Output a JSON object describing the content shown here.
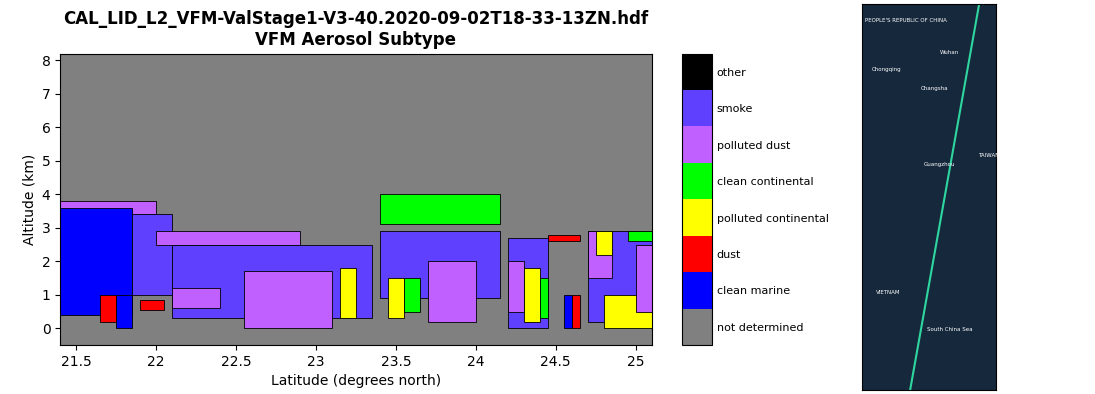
{
  "chart_data": {
    "type": "heatmap",
    "title": "CAL_LID_L2_VFM-ValStage1-V3-40.2020-09-02T18-33-13ZN.hdf\nVFM Aerosol Subtype",
    "x_label": "Latitude (degrees north)",
    "y_label": "Altitude (km)",
    "xlim": [
      21.4,
      25.1
    ],
    "xticks": [
      21.5,
      22,
      22.5,
      23,
      23.5,
      24,
      24.5,
      25
    ],
    "ylim": [
      -0.5,
      8.2
    ],
    "yticks": [
      0,
      1,
      2,
      3,
      4,
      5,
      6,
      7,
      8
    ],
    "colorbar": {
      "categories": [
        "not determined",
        "clean marine",
        "dust",
        "polluted continental",
        "clean continental",
        "polluted dust",
        "smoke",
        "other"
      ],
      "colors": [
        "#808080",
        "#0000ff",
        "#ff0000",
        "#ffff00",
        "#00ff00",
        "#c060ff",
        "#6040ff",
        "#000000"
      ]
    },
    "regions": [
      {
        "lat": [
          21.4,
          22.0
        ],
        "alt": [
          3.4,
          3.8
        ],
        "class": "polluted dust"
      },
      {
        "lat": [
          21.4,
          21.85
        ],
        "alt": [
          0.4,
          3.6
        ],
        "class": "clean marine"
      },
      {
        "lat": [
          21.85,
          22.1
        ],
        "alt": [
          1.0,
          3.4
        ],
        "class": "smoke"
      },
      {
        "lat": [
          22.0,
          22.9
        ],
        "alt": [
          2.5,
          2.9
        ],
        "class": "polluted dust"
      },
      {
        "lat": [
          22.1,
          23.35
        ],
        "alt": [
          0.3,
          2.5
        ],
        "class": "smoke"
      },
      {
        "lat": [
          22.55,
          23.1
        ],
        "alt": [
          0.0,
          1.7
        ],
        "class": "polluted dust"
      },
      {
        "lat": [
          22.1,
          22.4
        ],
        "alt": [
          0.6,
          1.2
        ],
        "class": "polluted dust"
      },
      {
        "lat": [
          23.15,
          23.25
        ],
        "alt": [
          0.3,
          1.8
        ],
        "class": "polluted continental"
      },
      {
        "lat": [
          21.75,
          21.85
        ],
        "alt": [
          0.0,
          1.0
        ],
        "class": "clean marine"
      },
      {
        "lat": [
          21.65,
          21.75
        ],
        "alt": [
          0.2,
          1.0
        ],
        "class": "dust"
      },
      {
        "lat": [
          21.9,
          22.05
        ],
        "alt": [
          0.55,
          0.85
        ],
        "class": "dust"
      },
      {
        "lat": [
          23.4,
          24.15
        ],
        "alt": [
          3.1,
          4.0
        ],
        "class": "clean continental"
      },
      {
        "lat": [
          23.4,
          24.15
        ],
        "alt": [
          0.9,
          2.9
        ],
        "class": "smoke"
      },
      {
        "lat": [
          23.45,
          23.55
        ],
        "alt": [
          0.3,
          1.5
        ],
        "class": "polluted continental"
      },
      {
        "lat": [
          23.55,
          23.65
        ],
        "alt": [
          0.5,
          1.5
        ],
        "class": "clean continental"
      },
      {
        "lat": [
          23.7,
          24.0
        ],
        "alt": [
          0.2,
          2.0
        ],
        "class": "polluted dust"
      },
      {
        "lat": [
          24.2,
          24.45
        ],
        "alt": [
          0.0,
          2.7
        ],
        "class": "smoke"
      },
      {
        "lat": [
          24.2,
          24.3
        ],
        "alt": [
          0.5,
          2.0
        ],
        "class": "polluted dust"
      },
      {
        "lat": [
          24.3,
          24.4
        ],
        "alt": [
          0.2,
          1.8
        ],
        "class": "polluted continental"
      },
      {
        "lat": [
          24.4,
          24.45
        ],
        "alt": [
          0.3,
          1.5
        ],
        "class": "clean continental"
      },
      {
        "lat": [
          24.45,
          24.65
        ],
        "alt": [
          2.6,
          2.8
        ],
        "class": "dust"
      },
      {
        "lat": [
          24.55,
          24.6
        ],
        "alt": [
          0.0,
          1.0
        ],
        "class": "clean marine"
      },
      {
        "lat": [
          24.6,
          24.65
        ],
        "alt": [
          0.0,
          1.0
        ],
        "class": "dust"
      },
      {
        "lat": [
          24.7,
          25.1
        ],
        "alt": [
          0.2,
          2.9
        ],
        "class": "smoke"
      },
      {
        "lat": [
          24.8,
          25.1
        ],
        "alt": [
          0.0,
          1.0
        ],
        "class": "polluted continental"
      },
      {
        "lat": [
          24.7,
          24.85
        ],
        "alt": [
          1.5,
          2.9
        ],
        "class": "polluted dust"
      },
      {
        "lat": [
          24.75,
          24.85
        ],
        "alt": [
          2.2,
          2.9
        ],
        "class": "polluted continental"
      },
      {
        "lat": [
          24.95,
          25.1
        ],
        "alt": [
          2.6,
          2.9
        ],
        "class": "clean continental"
      },
      {
        "lat": [
          25.0,
          25.1
        ],
        "alt": [
          0.5,
          2.5
        ],
        "class": "polluted dust"
      }
    ]
  },
  "map": {
    "lon_range": [
      103,
      122.5
    ],
    "lat_range": [
      8,
      34
    ],
    "track": {
      "lon": [
        110,
        120
      ],
      "lat": [
        8,
        34
      ],
      "color": "#2fd6a0"
    },
    "labels": [
      {
        "text": "PEOPLE'S REPUBLIC OF CHINA",
        "lon": 103.5,
        "lat": 32.8
      },
      {
        "text": "Chongqing",
        "lon": 104.5,
        "lat": 29.5
      },
      {
        "text": "Wuhan",
        "lon": 114.3,
        "lat": 30.6
      },
      {
        "text": "Changsha",
        "lon": 111.5,
        "lat": 28.2
      },
      {
        "text": "Guangzhou",
        "lon": 112.0,
        "lat": 23.1
      },
      {
        "text": "TAIWAN",
        "lon": 119.8,
        "lat": 23.7
      },
      {
        "text": "VIETNAM",
        "lon": 105.0,
        "lat": 14.5
      },
      {
        "text": "South China Sea",
        "lon": 112.5,
        "lat": 12.0
      }
    ]
  }
}
